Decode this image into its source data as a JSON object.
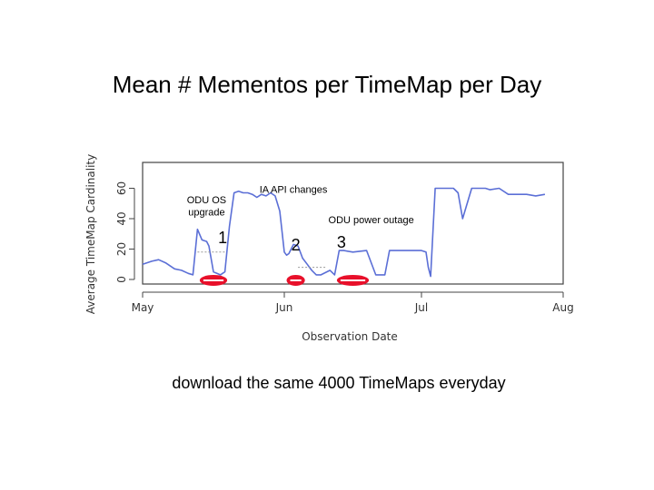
{
  "slide": {
    "title": "Mean # Mementos per TimeMap per Day",
    "caption": "download the same 4000 TimeMaps everyday"
  },
  "chart_data": {
    "type": "line",
    "title": "",
    "xlabel": "Observation Date",
    "ylabel": "Average TimeMap Cardinality",
    "x_ticks": [
      "May",
      "Jun",
      "Jul",
      "Aug"
    ],
    "y_ticks": [
      0,
      20,
      40,
      60
    ],
    "xlim": [
      0,
      92
    ],
    "ylim": [
      -3,
      77
    ],
    "series": [
      {
        "color": "#5b6fd6",
        "x": [
          0,
          2,
          3.5,
          5,
          7,
          8.5,
          10,
          11,
          12,
          13,
          14,
          14.5,
          15.5,
          17,
          18,
          19,
          20,
          21,
          22,
          23,
          24,
          25,
          26,
          27,
          28,
          29,
          30,
          31,
          31.5,
          32,
          33,
          34,
          35,
          36,
          36.5,
          37,
          38,
          39,
          41,
          42,
          43,
          44,
          46,
          49,
          51,
          52,
          53,
          54,
          55,
          56,
          57,
          59,
          61,
          62,
          62.5,
          63,
          64,
          66,
          67,
          68,
          69,
          70,
          72,
          73,
          74,
          75,
          76,
          78,
          80,
          82,
          84,
          86,
          88
        ],
        "y": [
          10,
          12,
          13,
          11,
          7,
          6,
          4,
          3,
          33,
          26,
          25,
          22,
          5,
          3,
          5,
          35,
          57,
          58,
          57,
          57,
          56,
          54,
          56,
          55,
          57,
          55,
          45,
          18,
          16,
          17,
          23,
          22,
          14,
          10,
          8,
          6,
          3,
          3,
          6,
          3,
          19,
          19,
          18,
          19,
          3,
          3,
          3,
          19,
          19,
          19,
          19,
          19,
          19,
          18,
          8,
          2,
          60,
          60,
          60,
          60,
          57,
          40,
          60,
          60,
          60,
          60,
          59,
          60,
          56,
          56,
          56,
          55,
          56
        ]
      },
      {
        "color": "#9a9a9a",
        "dashed": true,
        "x": [
          12,
          18
        ],
        "y": [
          18,
          18
        ]
      },
      {
        "color": "#9a9a9a",
        "dashed": true,
        "x": [
          34,
          40
        ],
        "y": [
          8,
          8
        ]
      }
    ],
    "highlights": [
      {
        "color": "#e8102a",
        "x_start": 12.5,
        "x_end": 18.5,
        "y": 0
      },
      {
        "color": "#e8102a",
        "x_start": 31.5,
        "x_end": 35.5,
        "y": 0
      },
      {
        "color": "#e8102a",
        "x_start": 42.5,
        "x_end": 49.5,
        "y": 0
      }
    ],
    "annotations": [
      {
        "text": "ODU OS",
        "x": 14,
        "y": 50
      },
      {
        "text": "upgrade",
        "x": 14,
        "y": 42
      },
      {
        "text": "IA API changes",
        "x": 33,
        "y": 57
      },
      {
        "text": "ODU power outage",
        "x": 50,
        "y": 37
      }
    ],
    "markers": [
      {
        "text": "1",
        "x": 17.5,
        "y": 24
      },
      {
        "text": "2",
        "x": 33.5,
        "y": 19
      },
      {
        "text": "3",
        "x": 43.5,
        "y": 21
      }
    ],
    "grid": false,
    "legend": "none"
  }
}
